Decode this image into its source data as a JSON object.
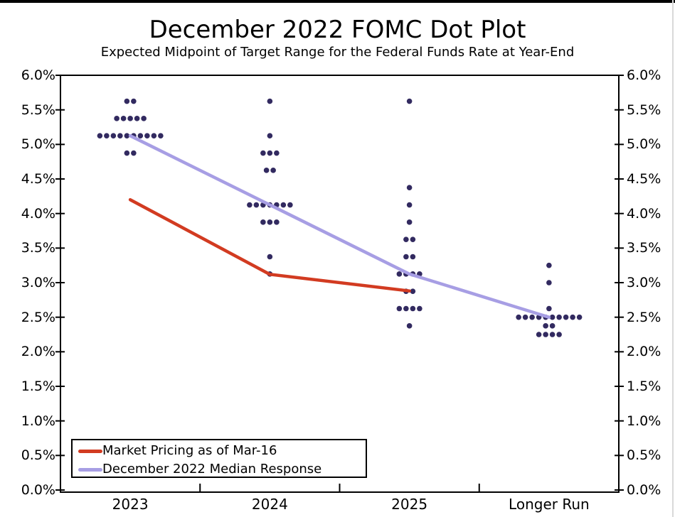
{
  "page": {
    "title": "December 2022 FOMC Dot Plot",
    "subtitle": "Expected Midpoint of Target Range for the Federal Funds Rate at Year-End"
  },
  "legend": {
    "items": [
      {
        "label": "Market Pricing as of Mar-16",
        "color": "#d23b21"
      },
      {
        "label": "December 2022 Median Response",
        "color": "#a79ee4"
      }
    ]
  },
  "chart_data": {
    "type": "scatter",
    "title": "December 2022 FOMC Dot Plot",
    "subtitle": "Expected Midpoint of Target Range for the Federal Funds Rate at Year-End",
    "categories": [
      "2023",
      "2024",
      "2025",
      "Longer Run"
    ],
    "y_axis": {
      "min": 0,
      "max": 6,
      "step": 0.5,
      "unit": "%",
      "tick_labels": [
        "6.0%",
        "5.5%",
        "5.0%",
        "4.5%",
        "4.0%",
        "3.5%",
        "3.0%",
        "2.5%",
        "2.0%",
        "1.5%",
        "1.0%",
        "0.5%",
        "0.0%"
      ],
      "grid": false,
      "mirrored_right_axis": true
    },
    "dot_color": "#322a60",
    "dots": [
      {
        "category": "2023",
        "points": [
          [
            5.625,
            2
          ],
          [
            5.375,
            5
          ],
          [
            5.125,
            10
          ],
          [
            4.875,
            2
          ]
        ]
      },
      {
        "category": "2024",
        "points": [
          [
            5.625,
            1
          ],
          [
            5.125,
            1
          ],
          [
            4.875,
            3
          ],
          [
            4.625,
            2
          ],
          [
            4.125,
            7
          ],
          [
            3.875,
            3
          ],
          [
            3.375,
            1
          ],
          [
            3.125,
            1
          ]
        ]
      },
      {
        "category": "2025",
        "points": [
          [
            5.625,
            1
          ],
          [
            4.375,
            1
          ],
          [
            4.125,
            1
          ],
          [
            3.875,
            1
          ],
          [
            3.625,
            2
          ],
          [
            3.375,
            2
          ],
          [
            3.125,
            4
          ],
          [
            2.875,
            2
          ],
          [
            2.625,
            4
          ],
          [
            2.375,
            1
          ]
        ]
      },
      {
        "category": "Longer Run",
        "points": [
          [
            3.25,
            1
          ],
          [
            3.0,
            1
          ],
          [
            2.625,
            1
          ],
          [
            2.5,
            10
          ],
          [
            2.375,
            2
          ],
          [
            2.25,
            4
          ]
        ]
      }
    ],
    "series": [
      {
        "name": "Market Pricing as of Mar-16",
        "color": "#d23b21",
        "points": [
          [
            "2023",
            4.2
          ],
          [
            "2024",
            3.12
          ],
          [
            "2025",
            2.88
          ]
        ]
      },
      {
        "name": "December 2022 Median Response",
        "color": "#a79ee4",
        "points": [
          [
            "2023",
            5.125
          ],
          [
            "2024",
            4.125
          ],
          [
            "2025",
            3.125
          ],
          [
            "Longer Run",
            2.5
          ]
        ]
      }
    ],
    "legend_position": "bottom-left"
  }
}
